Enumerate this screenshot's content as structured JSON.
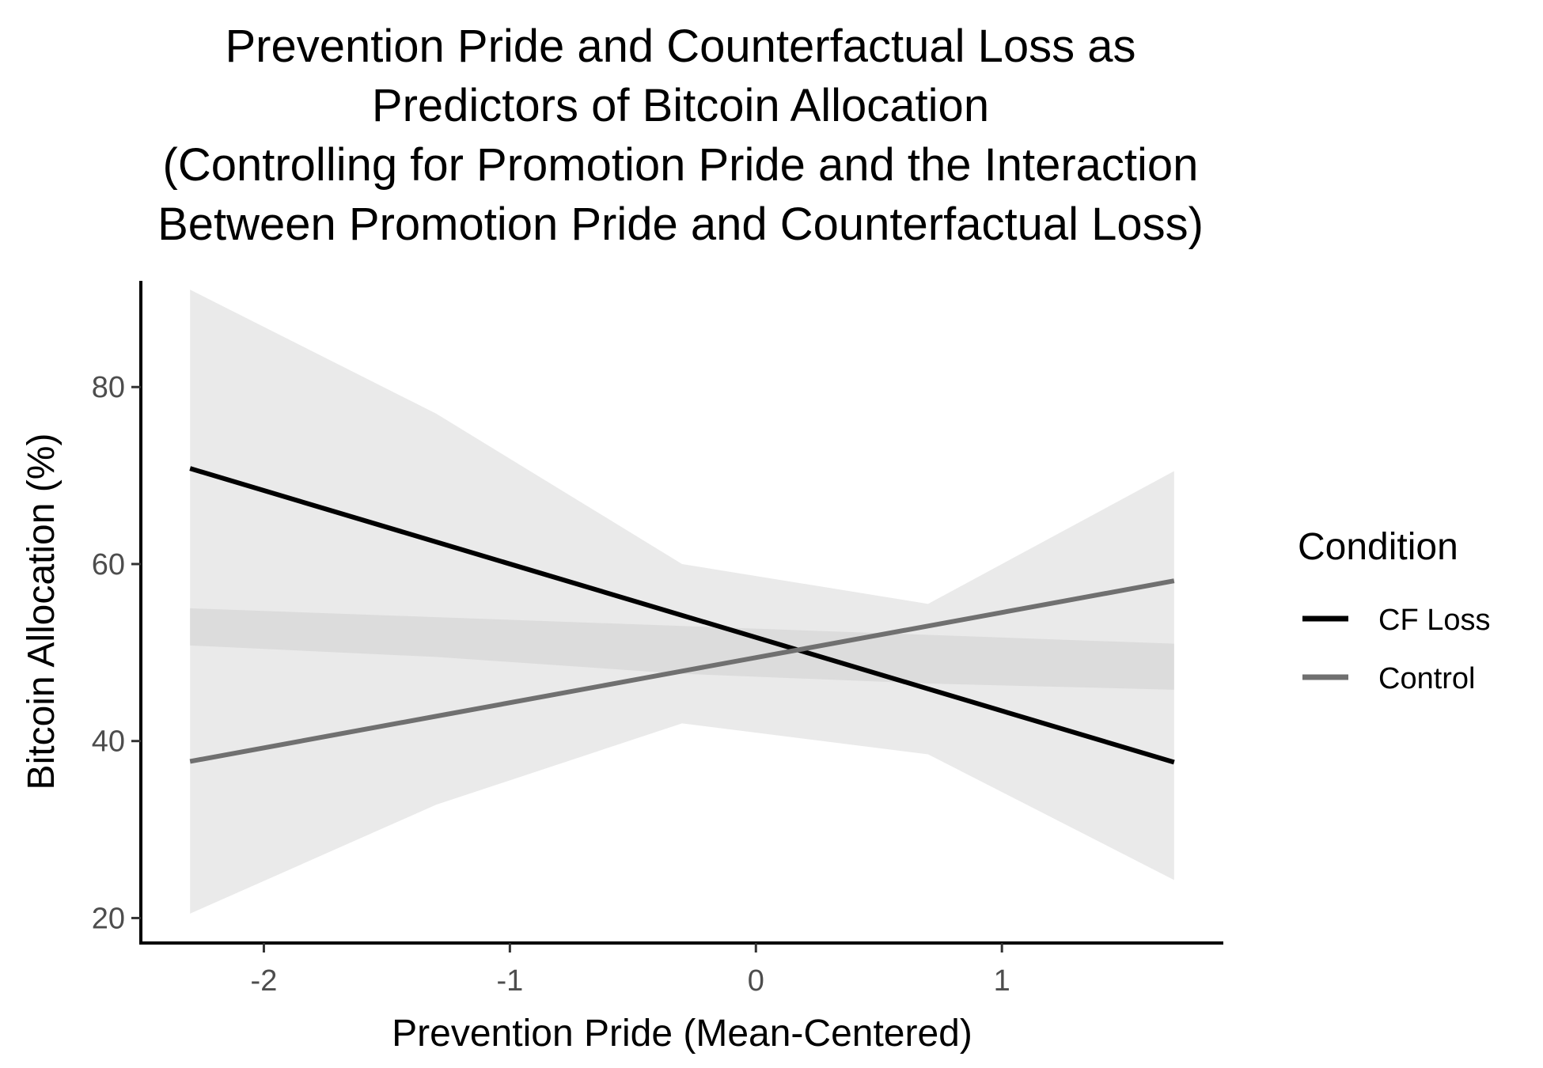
{
  "chart_data": {
    "type": "line",
    "title_lines": [
      "Prevention Pride and Counterfactual Loss as",
      "Predictors of Bitcoin Allocation",
      "(Controlling for Promotion Pride and the Interaction",
      "Between Promotion Pride and Counterfactual Loss)"
    ],
    "xlabel": "Prevention Pride (Mean-Centered)",
    "ylabel": "Bitcoin Allocation (%)",
    "xlim": [
      -2.5,
      1.9
    ],
    "ylim": [
      17,
      92
    ],
    "x_ticks": [
      -2,
      -1,
      0,
      1
    ],
    "x_tick_labels": [
      "-2",
      "-1",
      "0",
      "1"
    ],
    "y_ticks": [
      20,
      40,
      60,
      80
    ],
    "y_tick_labels": [
      "20",
      "40",
      "60",
      "80"
    ],
    "grid": false,
    "legend": {
      "title": "Condition",
      "position": "right",
      "entries": [
        "CF Loss",
        "Control"
      ]
    },
    "series": [
      {
        "name": "CF Loss",
        "color": "#000000",
        "band_color": "#e6e6e6",
        "x": [
          -2.3,
          -1.3,
          -0.3,
          0.7,
          1.7
        ],
        "y": [
          70.8,
          62.5,
          54.2,
          45.9,
          37.6
        ],
        "lower": [
          20.5,
          32.8,
          42.0,
          38.5,
          24.3
        ],
        "upper": [
          91.0,
          77.0,
          60.0,
          55.5,
          70.5
        ]
      },
      {
        "name": "Control",
        "color": "#707070",
        "band_color": "#d9d9d9",
        "x": [
          -2.3,
          -1.3,
          -0.3,
          0.7,
          1.7
        ],
        "y": [
          37.7,
          42.8,
          47.9,
          53.0,
          58.1
        ],
        "lower": [
          50.8,
          49.5,
          47.6,
          46.5,
          45.8
        ],
        "upper": [
          55.0,
          54.0,
          53.0,
          52.0,
          51.0
        ]
      }
    ]
  }
}
